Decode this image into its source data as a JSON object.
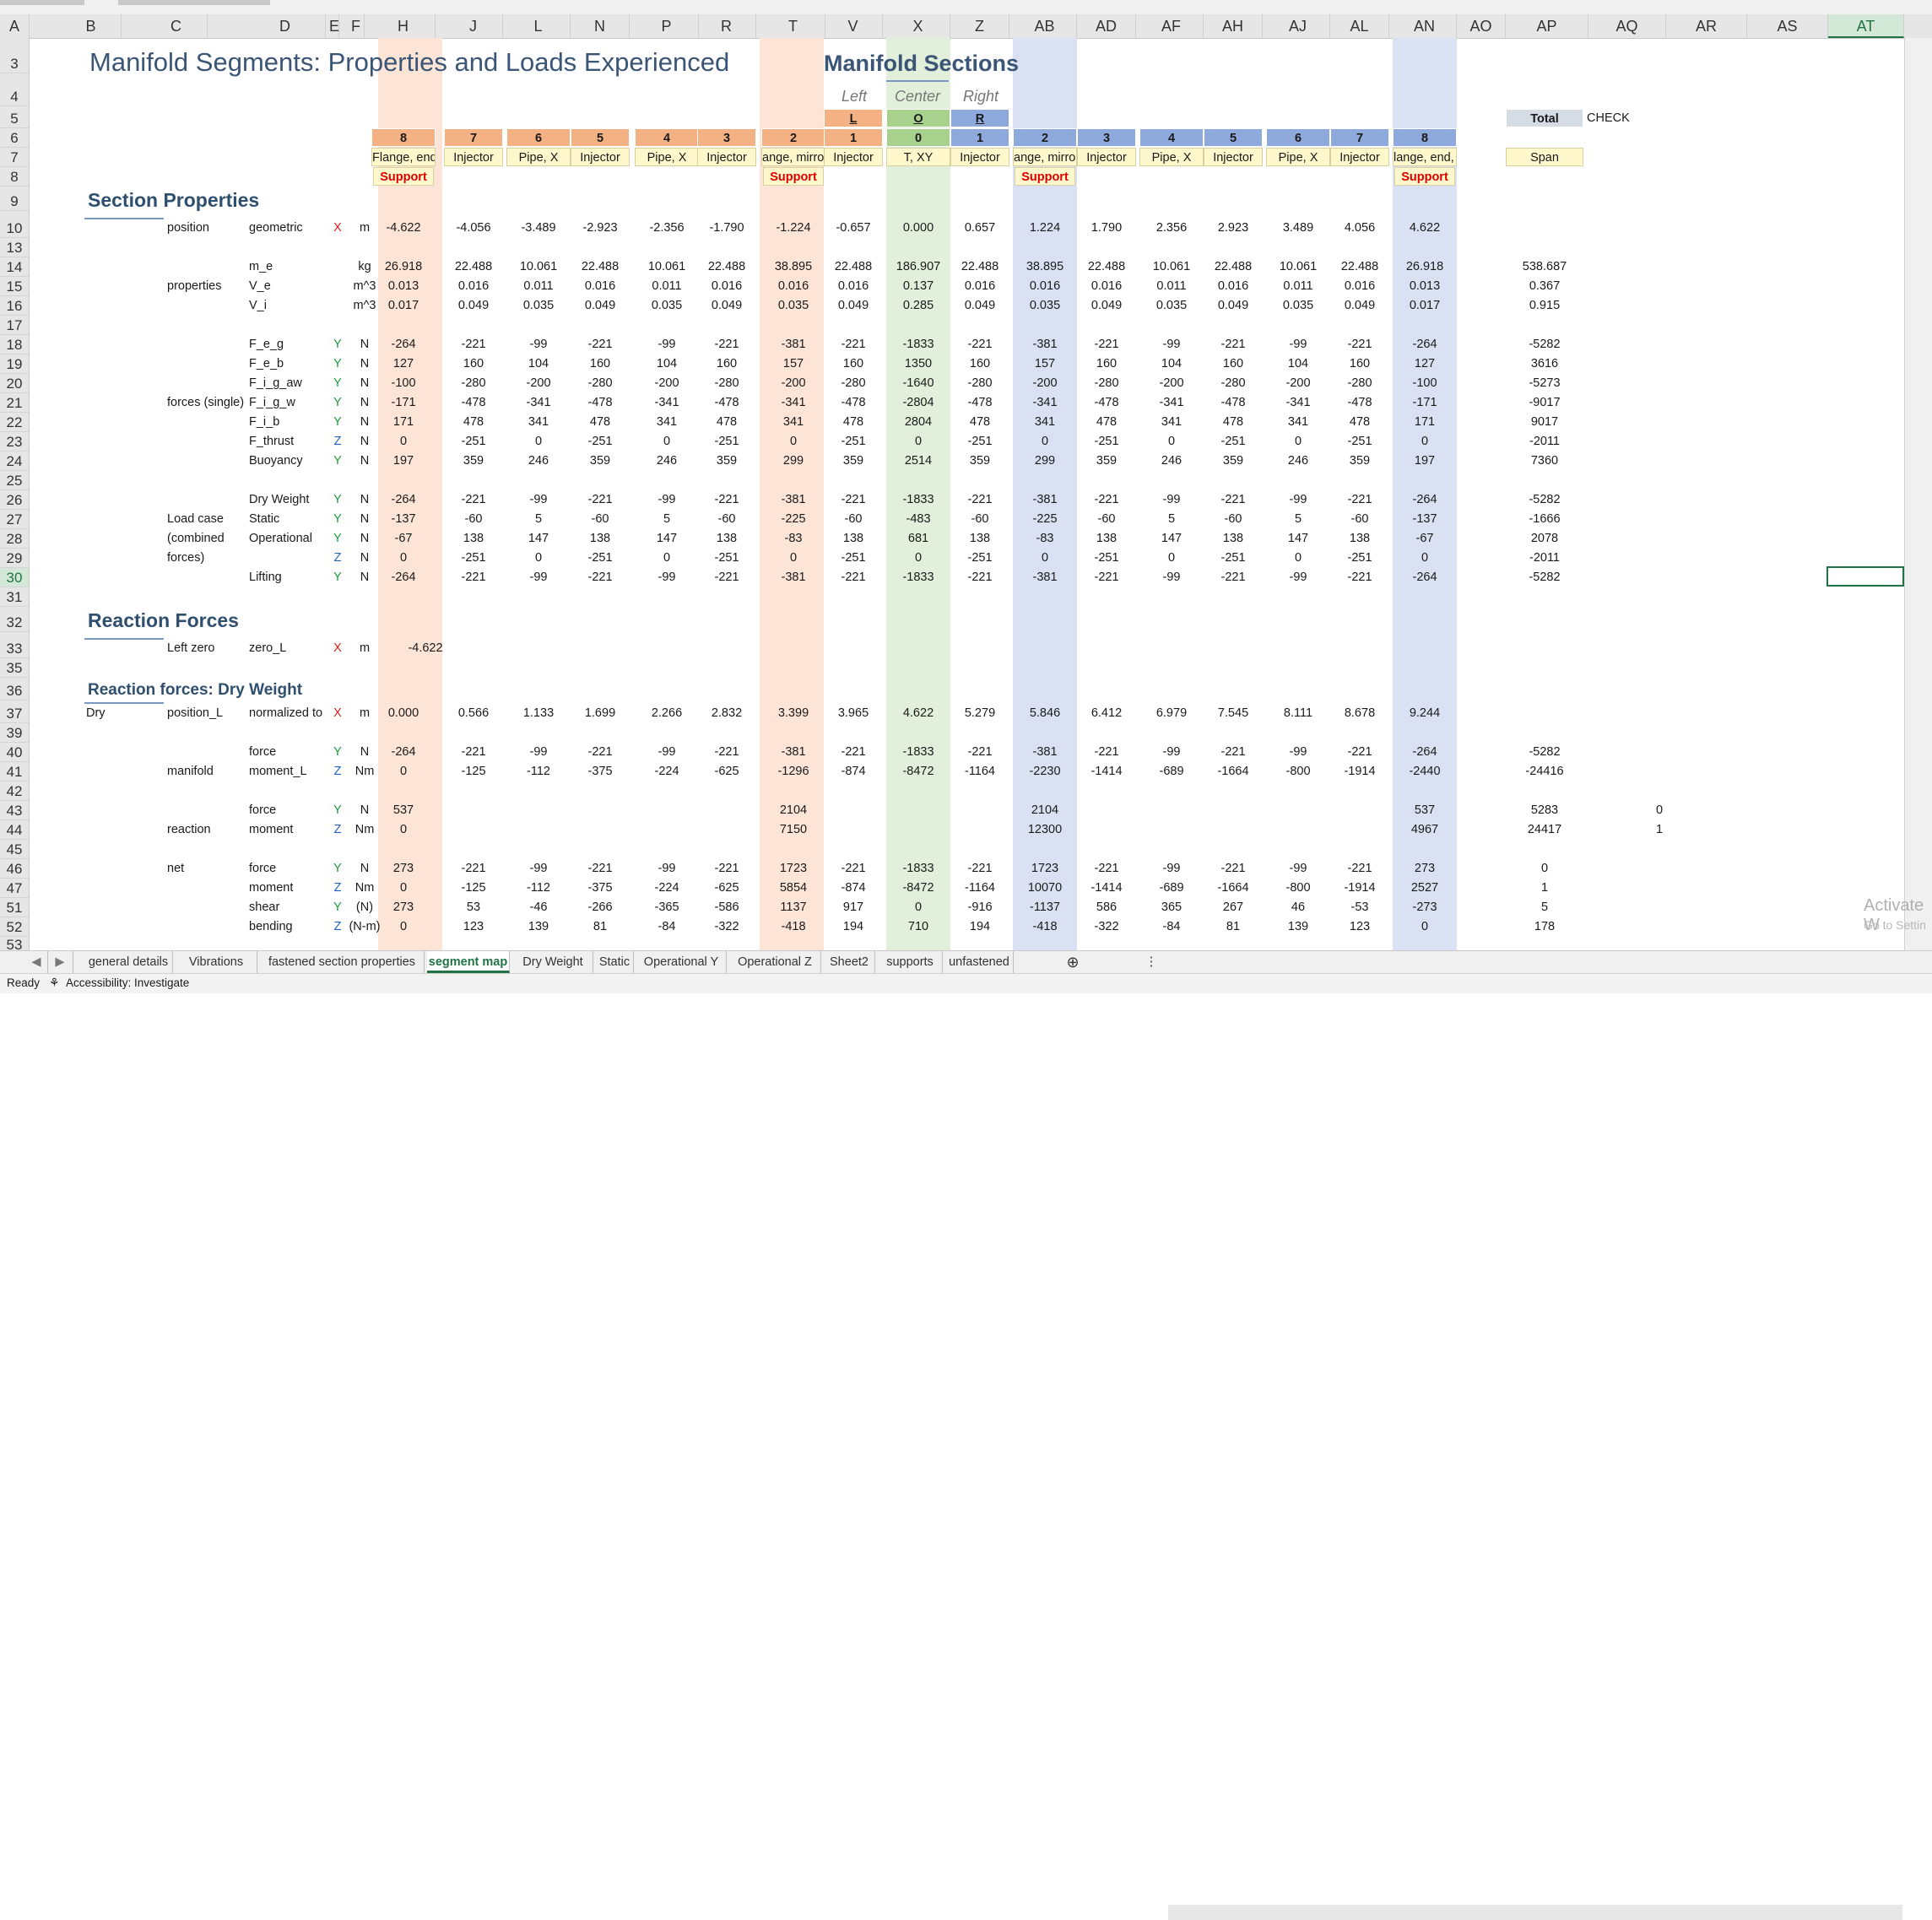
{
  "sheet": {
    "title": "Manifold Segments: Properties and Loads Experienced",
    "manifold_sections_title": "Manifold Sections",
    "side_labels": [
      "Left",
      "Center",
      "Right"
    ],
    "section_properties_title": "Section Properties",
    "reaction_forces_title": "Reaction Forces",
    "reaction_dry_title": "Reaction forces: Dry Weight",
    "total_label": "Total",
    "check_label": "CHECK",
    "span_label": "Span",
    "support_label": "Support",
    "letters": [
      "L",
      "O",
      "R"
    ],
    "seg_numbers": [
      "8",
      "7",
      "6",
      "5",
      "4",
      "3",
      "2",
      "1",
      "0",
      "1",
      "2",
      "3",
      "4",
      "5",
      "6",
      "7",
      "8"
    ],
    "seg_types": [
      "Flange, end,",
      "Injector",
      "Pipe, X",
      "Injector",
      "Pipe, X",
      "Injector",
      "ange, mirror",
      "Injector",
      "T, XY",
      "Injector",
      "ange, mirror",
      "Injector",
      "Pipe, X",
      "Injector",
      "Pipe, X",
      "Injector",
      "lange, end, X"
    ],
    "colors": {
      "orange_header": "#f4b183",
      "orange_band": "#fce4d6",
      "green_header": "#a9d18e",
      "green_band": "#e2efda",
      "blue_header": "#8ea9db",
      "blue_band": "#d9e1f2",
      "yellow": "#fff2cc",
      "grid_header": "#e6e6e6"
    }
  },
  "col_headers": [
    "A",
    "B",
    "C",
    "D",
    "E",
    "F",
    "H",
    "J",
    "L",
    "N",
    "P",
    "R",
    "T",
    "V",
    "X",
    "Z",
    "AB",
    "AD",
    "AF",
    "AH",
    "AJ",
    "AL",
    "AN",
    "AO",
    "AP",
    "AQ",
    "AR",
    "AS",
    "AT"
  ],
  "row_headers": [
    "3",
    "4",
    "5",
    "6",
    "7",
    "8",
    "9",
    "10",
    "13",
    "14",
    "15",
    "16",
    "17",
    "18",
    "19",
    "20",
    "21",
    "22",
    "23",
    "24",
    "25",
    "26",
    "27",
    "28",
    "29",
    "30",
    "31",
    "32",
    "33",
    "35",
    "36",
    "37",
    "39",
    "40",
    "41",
    "42",
    "43",
    "44",
    "45",
    "46",
    "47",
    "51",
    "52",
    "53"
  ],
  "rows": [
    {
      "r": "10",
      "b": "",
      "c": "position",
      "d": "geometric",
      "ax": "X",
      "u": "m",
      "v": [
        "-4.622",
        "-4.056",
        "-3.489",
        "-2.923",
        "-2.356",
        "-1.790",
        "-1.224",
        "-0.657",
        "0.000",
        "0.657",
        "1.224",
        "1.790",
        "2.356",
        "2.923",
        "3.489",
        "4.056",
        "4.622"
      ],
      "total": "",
      "aq": ""
    },
    {
      "r": "14",
      "b": "",
      "c": "",
      "d": "m_e",
      "ax": "",
      "u": "kg",
      "v": [
        "26.918",
        "22.488",
        "10.061",
        "22.488",
        "10.061",
        "22.488",
        "38.895",
        "22.488",
        "186.907",
        "22.488",
        "38.895",
        "22.488",
        "10.061",
        "22.488",
        "10.061",
        "22.488",
        "26.918"
      ],
      "total": "538.687",
      "aq": ""
    },
    {
      "r": "15",
      "b": "",
      "c": "properties",
      "d": "V_e",
      "ax": "",
      "u": "m^3",
      "v": [
        "0.013",
        "0.016",
        "0.011",
        "0.016",
        "0.011",
        "0.016",
        "0.016",
        "0.016",
        "0.137",
        "0.016",
        "0.016",
        "0.016",
        "0.011",
        "0.016",
        "0.011",
        "0.016",
        "0.013"
      ],
      "total": "0.367",
      "aq": ""
    },
    {
      "r": "16",
      "b": "",
      "c": "",
      "d": "V_i",
      "ax": "",
      "u": "m^3",
      "v": [
        "0.017",
        "0.049",
        "0.035",
        "0.049",
        "0.035",
        "0.049",
        "0.035",
        "0.049",
        "0.285",
        "0.049",
        "0.035",
        "0.049",
        "0.035",
        "0.049",
        "0.035",
        "0.049",
        "0.017"
      ],
      "total": "0.915",
      "aq": ""
    },
    {
      "r": "18",
      "b": "",
      "c": "",
      "d": "F_e_g",
      "ax": "Y",
      "u": "N",
      "v": [
        "-264",
        "-221",
        "-99",
        "-221",
        "-99",
        "-221",
        "-381",
        "-221",
        "-1833",
        "-221",
        "-381",
        "-221",
        "-99",
        "-221",
        "-99",
        "-221",
        "-264"
      ],
      "total": "-5282",
      "aq": ""
    },
    {
      "r": "19",
      "b": "",
      "c": "",
      "d": "F_e_b",
      "ax": "Y",
      "u": "N",
      "v": [
        "127",
        "160",
        "104",
        "160",
        "104",
        "160",
        "157",
        "160",
        "1350",
        "160",
        "157",
        "160",
        "104",
        "160",
        "104",
        "160",
        "127"
      ],
      "total": "3616",
      "aq": ""
    },
    {
      "r": "20",
      "b": "",
      "c": "",
      "d": "F_i_g_aw",
      "ax": "Y",
      "u": "N",
      "v": [
        "-100",
        "-280",
        "-200",
        "-280",
        "-200",
        "-280",
        "-200",
        "-280",
        "-1640",
        "-280",
        "-200",
        "-280",
        "-200",
        "-280",
        "-200",
        "-280",
        "-100"
      ],
      "total": "-5273",
      "aq": ""
    },
    {
      "r": "21",
      "b": "",
      "c": "forces (single)",
      "d": "F_i_g_w",
      "ax": "Y",
      "u": "N",
      "v": [
        "-171",
        "-478",
        "-341",
        "-478",
        "-341",
        "-478",
        "-341",
        "-478",
        "-2804",
        "-478",
        "-341",
        "-478",
        "-341",
        "-478",
        "-341",
        "-478",
        "-171"
      ],
      "total": "-9017",
      "aq": ""
    },
    {
      "r": "22",
      "b": "",
      "c": "",
      "d": "F_i_b",
      "ax": "Y",
      "u": "N",
      "v": [
        "171",
        "478",
        "341",
        "478",
        "341",
        "478",
        "341",
        "478",
        "2804",
        "478",
        "341",
        "478",
        "341",
        "478",
        "341",
        "478",
        "171"
      ],
      "total": "9017",
      "aq": ""
    },
    {
      "r": "23",
      "b": "",
      "c": "",
      "d": "F_thrust",
      "ax": "Z",
      "u": "N",
      "v": [
        "0",
        "-251",
        "0",
        "-251",
        "0",
        "-251",
        "0",
        "-251",
        "0",
        "-251",
        "0",
        "-251",
        "0",
        "-251",
        "0",
        "-251",
        "0"
      ],
      "total": "-2011",
      "aq": ""
    },
    {
      "r": "24",
      "b": "",
      "c": "",
      "d": "Buoyancy",
      "ax": "Y",
      "u": "N",
      "v": [
        "197",
        "359",
        "246",
        "359",
        "246",
        "359",
        "299",
        "359",
        "2514",
        "359",
        "299",
        "359",
        "246",
        "359",
        "246",
        "359",
        "197"
      ],
      "total": "7360",
      "aq": ""
    },
    {
      "r": "26",
      "b": "",
      "c": "",
      "d": "Dry Weight",
      "ax": "Y",
      "u": "N",
      "v": [
        "-264",
        "-221",
        "-99",
        "-221",
        "-99",
        "-221",
        "-381",
        "-221",
        "-1833",
        "-221",
        "-381",
        "-221",
        "-99",
        "-221",
        "-99",
        "-221",
        "-264"
      ],
      "total": "-5282",
      "aq": ""
    },
    {
      "r": "27",
      "b": "",
      "c": "Load case",
      "d": "Static",
      "ax": "Y",
      "u": "N",
      "v": [
        "-137",
        "-60",
        "5",
        "-60",
        "5",
        "-60",
        "-225",
        "-60",
        "-483",
        "-60",
        "-225",
        "-60",
        "5",
        "-60",
        "5",
        "-60",
        "-137"
      ],
      "total": "-1666",
      "aq": ""
    },
    {
      "r": "28",
      "b": "",
      "c": "(combined",
      "d": "Operational",
      "ax": "Y",
      "u": "N",
      "v": [
        "-67",
        "138",
        "147",
        "138",
        "147",
        "138",
        "-83",
        "138",
        "681",
        "138",
        "-83",
        "138",
        "147",
        "138",
        "147",
        "138",
        "-67"
      ],
      "total": "2078",
      "aq": ""
    },
    {
      "r": "29",
      "b": "",
      "c": "forces)",
      "d": "",
      "ax": "Z",
      "u": "N",
      "v": [
        "0",
        "-251",
        "0",
        "-251",
        "0",
        "-251",
        "0",
        "-251",
        "0",
        "-251",
        "0",
        "-251",
        "0",
        "-251",
        "0",
        "-251",
        "0"
      ],
      "total": "-2011",
      "aq": ""
    },
    {
      "r": "30",
      "b": "",
      "c": "",
      "d": "Lifting",
      "ax": "Y",
      "u": "N",
      "v": [
        "-264",
        "-221",
        "-99",
        "-221",
        "-99",
        "-221",
        "-381",
        "-221",
        "-1833",
        "-221",
        "-381",
        "-221",
        "-99",
        "-221",
        "-99",
        "-221",
        "-264"
      ],
      "total": "-5282",
      "aq": ""
    },
    {
      "r": "33",
      "b": "",
      "c": "Left zero",
      "d": "zero_L",
      "ax": "X",
      "u": "m",
      "v": [
        "-4.622",
        "",
        "",
        "",
        "",
        "",
        "",
        "",
        "",
        "",
        "",
        "",
        "",
        "",
        "",
        "",
        ""
      ],
      "total": "",
      "aq": ""
    },
    {
      "r": "37",
      "b": "Dry",
      "c": "position_L",
      "d": "normalized to",
      "ax": "X",
      "u": "m",
      "v": [
        "0.000",
        "0.566",
        "1.133",
        "1.699",
        "2.266",
        "2.832",
        "3.399",
        "3.965",
        "4.622",
        "5.279",
        "5.846",
        "6.412",
        "6.979",
        "7.545",
        "8.111",
        "8.678",
        "9.244"
      ],
      "total": "",
      "aq": ""
    },
    {
      "r": "40",
      "b": "",
      "c": "",
      "d": "force",
      "ax": "Y",
      "u": "N",
      "v": [
        "-264",
        "-221",
        "-99",
        "-221",
        "-99",
        "-221",
        "-381",
        "-221",
        "-1833",
        "-221",
        "-381",
        "-221",
        "-99",
        "-221",
        "-99",
        "-221",
        "-264"
      ],
      "total": "-5282",
      "aq": ""
    },
    {
      "r": "41",
      "b": "",
      "c": "manifold",
      "d": "moment_L",
      "ax": "Z",
      "u": "Nm",
      "v": [
        "0",
        "-125",
        "-112",
        "-375",
        "-224",
        "-625",
        "-1296",
        "-874",
        "-8472",
        "-1164",
        "-2230",
        "-1414",
        "-689",
        "-1664",
        "-800",
        "-1914",
        "-2440"
      ],
      "total": "-24416",
      "aq": ""
    },
    {
      "r": "43",
      "b": "",
      "c": "",
      "d": "force",
      "ax": "Y",
      "u": "N",
      "v": [
        "537",
        "",
        "",
        "",
        "",
        "",
        "2104",
        "",
        "",
        "",
        "2104",
        "",
        "",
        "",
        "",
        "",
        "537"
      ],
      "total": "5283",
      "aq": "0"
    },
    {
      "r": "44",
      "b": "",
      "c": "reaction",
      "d": "moment",
      "ax": "Z",
      "u": "Nm",
      "v": [
        "0",
        "",
        "",
        "",
        "",
        "",
        "7150",
        "",
        "",
        "",
        "12300",
        "",
        "",
        "",
        "",
        "",
        "4967"
      ],
      "total": "24417",
      "aq": "1"
    },
    {
      "r": "46",
      "b": "",
      "c": "net",
      "d": "force",
      "ax": "Y",
      "u": "N",
      "v": [
        "273",
        "-221",
        "-99",
        "-221",
        "-99",
        "-221",
        "1723",
        "-221",
        "-1833",
        "-221",
        "1723",
        "-221",
        "-99",
        "-221",
        "-99",
        "-221",
        "273"
      ],
      "total": "0",
      "aq": ""
    },
    {
      "r": "47",
      "b": "",
      "c": "",
      "d": "moment",
      "ax": "Z",
      "u": "Nm",
      "v": [
        "0",
        "-125",
        "-112",
        "-375",
        "-224",
        "-625",
        "5854",
        "-874",
        "-8472",
        "-1164",
        "10070",
        "-1414",
        "-689",
        "-1664",
        "-800",
        "-1914",
        "2527"
      ],
      "total": "1",
      "aq": ""
    },
    {
      "r": "51",
      "b": "",
      "c": "",
      "d": "shear",
      "ax": "Y",
      "u": "(N)",
      "v": [
        "273",
        "53",
        "-46",
        "-266",
        "-365",
        "-586",
        "1137",
        "917",
        "0",
        "-916",
        "-1137",
        "586",
        "365",
        "267",
        "46",
        "-53",
        "-273"
      ],
      "total": "5",
      "aq": ""
    },
    {
      "r": "52",
      "b": "",
      "c": "",
      "d": "bending",
      "ax": "Z",
      "u": "(N-m)",
      "v": [
        "0",
        "123",
        "139",
        "81",
        "-84",
        "-322",
        "-418",
        "194",
        "710",
        "194",
        "-418",
        "-322",
        "-84",
        "81",
        "139",
        "123",
        "0"
      ],
      "total": "178",
      "aq": ""
    }
  ],
  "tabs": [
    "general details",
    "Vibrations",
    "fastened section properties",
    "segment map",
    "Dry Weight",
    "Static",
    "Operational Y",
    "Operational Z",
    "Sheet2",
    "supports",
    "unfastened"
  ],
  "active_tab": "segment map",
  "status": {
    "ready": "Ready",
    "accessibility": "Accessibility: Investigate"
  },
  "watermark": {
    "line1": "Activate W",
    "line2": "Go to Settin"
  }
}
